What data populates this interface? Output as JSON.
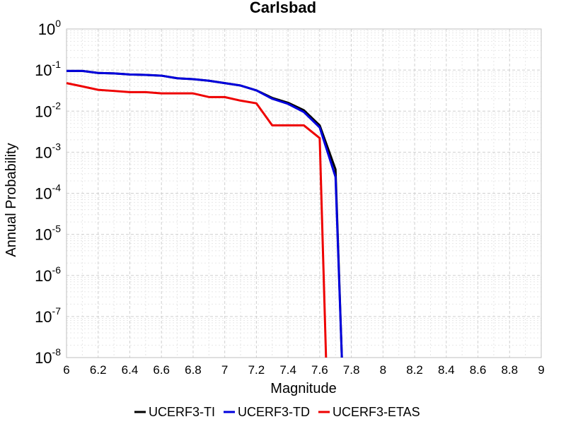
{
  "chart_data": {
    "type": "line",
    "title": "Carlsbad",
    "xlabel": "Magnitude",
    "ylabel": "Annual Probability",
    "xlim": [
      6,
      9
    ],
    "ylim": [
      1e-08,
      1
    ],
    "yscale": "log",
    "grid": true,
    "legend_placement": "bottom-center",
    "x_ticks": [
      "6",
      "6.2",
      "6.4",
      "6.6",
      "6.8",
      "7",
      "7.2",
      "7.4",
      "7.6",
      "7.8",
      "8",
      "8.2",
      "8.4",
      "8.6",
      "8.8",
      "9"
    ],
    "y_tick_exponents": [
      "0",
      "-1",
      "-2",
      "-3",
      "-4",
      "-5",
      "-6",
      "-7",
      "-8"
    ],
    "y_tick_base": "10",
    "series": [
      {
        "name": "UCERF3-TI",
        "color": "#000000",
        "x": [
          6.0,
          6.1,
          6.2,
          6.3,
          6.4,
          6.5,
          6.6,
          6.7,
          6.8,
          6.9,
          7.0,
          7.1,
          7.2,
          7.3,
          7.4,
          7.5,
          7.6,
          7.7,
          7.74
        ],
        "y": [
          0.095,
          0.095,
          0.085,
          0.083,
          0.078,
          0.076,
          0.073,
          0.063,
          0.06,
          0.055,
          0.048,
          0.042,
          0.032,
          0.021,
          0.016,
          0.0105,
          0.0045,
          0.00038,
          1e-08
        ]
      },
      {
        "name": "UCERF3-TD",
        "color": "#0000dd",
        "x": [
          6.0,
          6.1,
          6.2,
          6.3,
          6.4,
          6.5,
          6.6,
          6.7,
          6.8,
          6.9,
          7.0,
          7.1,
          7.2,
          7.3,
          7.4,
          7.5,
          7.6,
          7.7,
          7.74
        ],
        "y": [
          0.095,
          0.095,
          0.085,
          0.083,
          0.078,
          0.076,
          0.073,
          0.063,
          0.06,
          0.055,
          0.048,
          0.042,
          0.032,
          0.02,
          0.015,
          0.0095,
          0.004,
          0.00025,
          1e-08
        ]
      },
      {
        "name": "UCERF3-ETAS",
        "color": "#ee0000",
        "x": [
          6.0,
          6.1,
          6.2,
          6.3,
          6.4,
          6.5,
          6.6,
          6.7,
          6.8,
          6.9,
          7.0,
          7.1,
          7.2,
          7.3,
          7.4,
          7.5,
          7.6,
          7.64
        ],
        "y": [
          0.048,
          0.04,
          0.033,
          0.031,
          0.029,
          0.029,
          0.027,
          0.027,
          0.027,
          0.022,
          0.022,
          0.018,
          0.0155,
          0.0045,
          0.0045,
          0.0045,
          0.0022,
          1e-08
        ]
      }
    ]
  }
}
